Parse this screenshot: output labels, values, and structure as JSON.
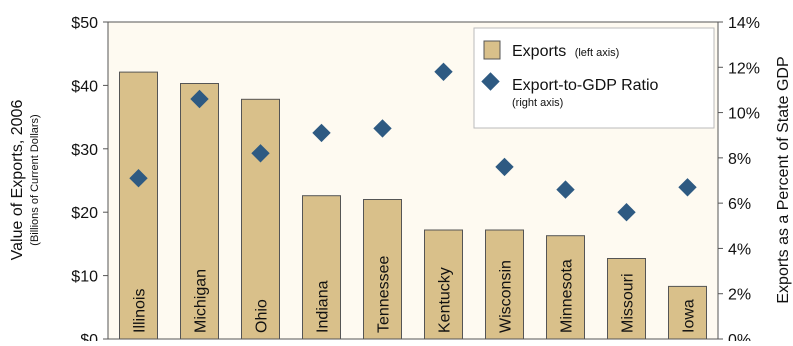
{
  "chart_data": {
    "type": "bar",
    "categories": [
      "Illinois",
      "Michigan",
      "Ohio",
      "Indiana",
      "Tennessee",
      "Kentucky",
      "Wisconsin",
      "Minnesota",
      "Missouri",
      "Iowa"
    ],
    "series": [
      {
        "name": "Exports",
        "name_note": "(left axis)",
        "kind": "bar",
        "axis": "left",
        "color": "#d9c08a",
        "values": [
          42.1,
          40.3,
          37.8,
          22.6,
          22.0,
          17.2,
          17.2,
          16.3,
          12.7,
          8.3
        ]
      },
      {
        "name": "Export-to-GDP Ratio",
        "name_note": "(right axis)",
        "kind": "scatter",
        "axis": "right",
        "color": "#2e5a82",
        "values": [
          7.1,
          10.6,
          8.2,
          9.1,
          9.3,
          11.8,
          7.6,
          6.6,
          5.6,
          6.7
        ]
      }
    ],
    "ylabel_left": "Value of Exports, 2006",
    "ylabel_left_sub": "(Billions of Current Dollars)",
    "ylabel_right": "Exports as a Percent of State GDP",
    "ylim_left": [
      0,
      50
    ],
    "ylim_right": [
      0,
      14
    ],
    "yticks_left": [
      "$0",
      "$10",
      "$20",
      "$30",
      "$40",
      "$50"
    ],
    "yticks_right": [
      "0%",
      "2%",
      "4%",
      "6%",
      "8%",
      "10%",
      "12%",
      "14%"
    ],
    "grid": false,
    "legend_position": "top-right",
    "background": "#fefaf1"
  }
}
